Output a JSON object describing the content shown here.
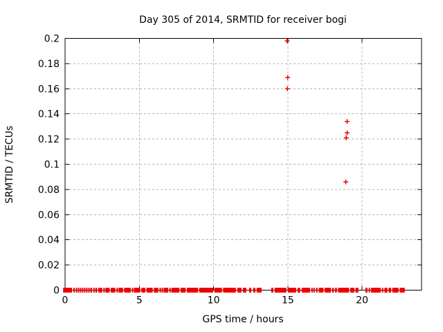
{
  "window": {
    "background_color": "#ffffff"
  },
  "chart_data": {
    "type": "scatter",
    "title": "Day 305 of 2014, SRMTID for receiver bogi",
    "xlabel": "GPS time / hours",
    "ylabel": "SRMTID / TECUs",
    "xlim": [
      0,
      24
    ],
    "ylim": [
      0,
      0.2
    ],
    "xticks": [
      {
        "value": 0,
        "label": "0"
      },
      {
        "value": 5,
        "label": "5"
      },
      {
        "value": 10,
        "label": "10"
      },
      {
        "value": 15,
        "label": "15"
      },
      {
        "value": 20,
        "label": "20"
      }
    ],
    "yticks": [
      {
        "value": 0,
        "label": "0"
      },
      {
        "value": 0.02,
        "label": "0.02"
      },
      {
        "value": 0.04,
        "label": "0.04"
      },
      {
        "value": 0.06,
        "label": "0.06"
      },
      {
        "value": 0.08,
        "label": "0.08"
      },
      {
        "value": 0.1,
        "label": "0.1"
      },
      {
        "value": 0.12,
        "label": "0.12"
      },
      {
        "value": 0.14,
        "label": "0.14"
      },
      {
        "value": 0.16,
        "label": "0.16"
      },
      {
        "value": 0.18,
        "label": "0.18"
      },
      {
        "value": 0.2,
        "label": "0.2"
      }
    ],
    "grid": true,
    "legend_position": "none",
    "marker": "plus",
    "marker_color": "#ee0000",
    "grid_color": "#b0b0b0",
    "axis_color": "#000000",
    "outlier_points": [
      [
        14.95,
        0.198
      ],
      [
        14.99,
        0.169
      ],
      [
        14.97,
        0.16
      ],
      [
        18.99,
        0.134
      ],
      [
        18.99,
        0.125
      ],
      [
        18.93,
        0.121
      ],
      [
        18.9,
        0.086
      ]
    ],
    "baseline_value": 0,
    "baseline_segments": [
      [
        -0.13,
        0.47
      ],
      [
        0.56,
        0.65
      ],
      [
        0.72,
        0.79
      ],
      [
        0.86,
        0.93
      ],
      [
        1.0,
        1.07
      ],
      [
        1.14,
        1.21
      ],
      [
        1.28,
        1.35
      ],
      [
        1.42,
        1.49
      ],
      [
        1.56,
        1.63
      ],
      [
        1.7,
        1.82
      ],
      [
        1.9,
        1.97
      ],
      [
        2.04,
        2.16
      ],
      [
        2.24,
        2.5
      ],
      [
        2.58,
        2.65
      ],
      [
        2.72,
        3.0
      ],
      [
        3.08,
        3.38
      ],
      [
        3.46,
        3.53
      ],
      [
        3.6,
        3.9
      ],
      [
        3.98,
        4.42
      ],
      [
        4.5,
        4.57
      ],
      [
        4.64,
        5.06
      ],
      [
        5.14,
        5.4
      ],
      [
        5.48,
        5.9
      ],
      [
        5.98,
        6.28
      ],
      [
        6.36,
        6.43
      ],
      [
        6.5,
        6.57
      ],
      [
        6.64,
        6.94
      ],
      [
        7.02,
        7.09
      ],
      [
        7.16,
        7.7
      ],
      [
        7.78,
        8.12
      ],
      [
        8.2,
        8.95
      ],
      [
        9.03,
        9.97
      ],
      [
        10.05,
        10.56
      ],
      [
        10.64,
        11.5
      ],
      [
        11.6,
        11.88
      ],
      [
        11.97,
        12.2
      ],
      [
        12.39,
        12.53
      ],
      [
        12.67,
        12.81
      ],
      [
        12.9,
        13.23
      ],
      [
        13.88,
        14.02
      ],
      [
        14.11,
        14.9
      ],
      [
        15.0,
        15.56
      ],
      [
        15.65,
        15.83
      ],
      [
        15.93,
        16.49
      ],
      [
        16.58,
        16.65
      ],
      [
        16.72,
        16.79
      ],
      [
        16.9,
        17.0
      ],
      [
        17.08,
        17.4
      ],
      [
        17.48,
        17.9
      ],
      [
        17.98,
        18.1
      ],
      [
        18.18,
        18.3
      ],
      [
        18.38,
        19.12
      ],
      [
        19.2,
        19.48
      ],
      [
        19.55,
        19.75
      ],
      [
        20.22,
        20.36
      ],
      [
        20.44,
        20.52
      ],
      [
        20.6,
        21.25
      ],
      [
        21.33,
        21.4
      ],
      [
        21.5,
        21.7
      ],
      [
        21.78,
        21.95
      ],
      [
        22.03,
        22.45
      ],
      [
        22.53,
        22.87
      ]
    ]
  }
}
